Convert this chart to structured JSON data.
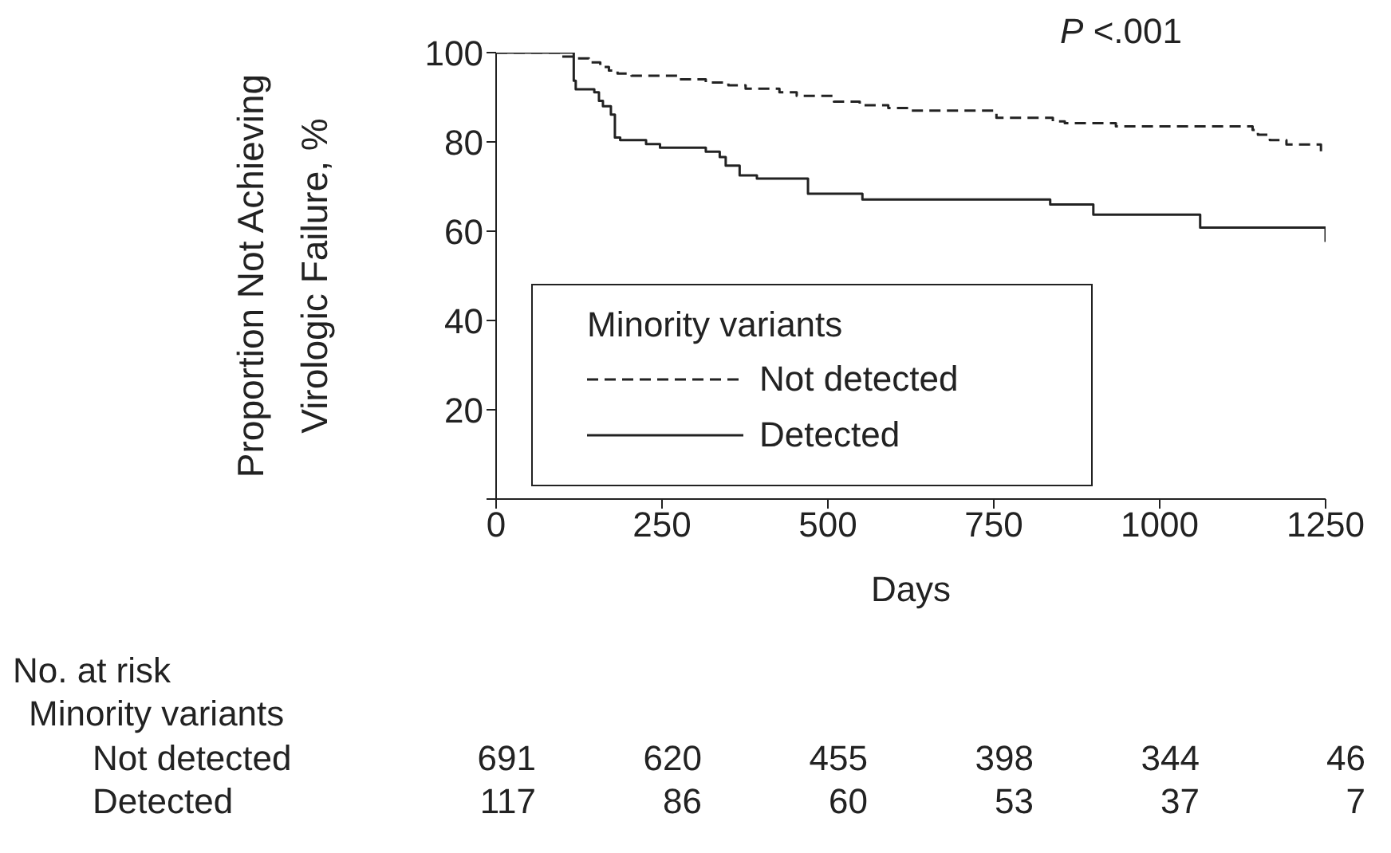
{
  "chart_data": {
    "type": "step",
    "ylabel": "Proportion Not Achieving Virologic Failure, %",
    "xlabel": "Days",
    "legend_title": "Minority variants",
    "legend": "bottom left",
    "xlim": [
      0,
      1250
    ],
    "xticks": [
      0,
      250,
      500,
      750,
      1000,
      1250
    ],
    "ylim": [
      0,
      100
    ],
    "yticks": [
      {
        "value": 0,
        "label": null
      },
      20,
      40,
      60,
      80,
      100
    ],
    "series": [
      {
        "name": "Not detected",
        "color": "#222222",
        "line_style": "dashed",
        "x": [
          0,
          97,
          118,
          140,
          157,
          170,
          183,
          204,
          273,
          316,
          350,
          376,
          427,
          453,
          509,
          548,
          591,
          625,
          754,
          839,
          857,
          934,
          1140,
          1148,
          1166,
          1191,
          1243,
          1250
        ],
        "values": [
          100,
          99.1,
          98.7,
          97.8,
          96.8,
          96,
          95.3,
          94.8,
          94,
          93.3,
          92.7,
          91.9,
          91.1,
          90.3,
          89,
          88.2,
          87.6,
          87,
          85.4,
          84.6,
          84.2,
          83.5,
          82.7,
          81.6,
          80.4,
          79.4,
          77.8,
          77.8
        ]
      },
      {
        "name": "Detected",
        "color": "#222222",
        "line_style": "solid",
        "x": [
          0,
          117,
          120,
          148,
          155,
          161,
          173,
          179,
          187,
          226,
          247,
          316,
          337,
          346,
          367,
          393,
          470,
          552,
          835,
          900,
          1061,
          1250
        ],
        "values": [
          100,
          93.7,
          91.8,
          91.1,
          89.2,
          88,
          86.1,
          81,
          80.4,
          79.5,
          78.7,
          77.8,
          76.6,
          74.7,
          72.5,
          71.8,
          68.4,
          67.1,
          66,
          63.7,
          60.8,
          57.6
        ]
      }
    ],
    "annotations": [
      "P <.001",
      "No. at risk",
      "Minority variants",
      "Not detected",
      "691",
      "620",
      "455",
      "398",
      "344",
      "46",
      "Detected",
      "117",
      "86",
      "60",
      "53",
      "37",
      "7"
    ]
  }
}
